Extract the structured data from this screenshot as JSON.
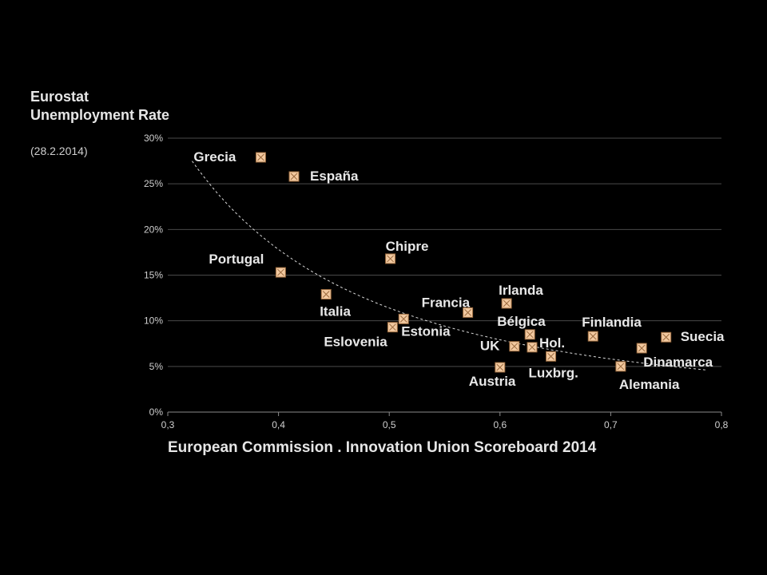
{
  "chart_data": {
    "type": "scatter",
    "title": "",
    "ylabel": "Eurostat Unemployment Rate",
    "ylabel_note": "(28.2.2014)",
    "xlabel": "European Commission . Innovation Union Scoreboard 2014",
    "xlim": [
      0.3,
      0.8
    ],
    "ylim": [
      0,
      30
    ],
    "x_ticks": [
      "0,3",
      "0,4",
      "0,5",
      "0,6",
      "0,7",
      "0,8"
    ],
    "y_ticks": [
      "0%",
      "5%",
      "10%",
      "15%",
      "20%",
      "25%",
      "30%"
    ],
    "grid": "horizontal",
    "trendline": "dashed curve",
    "marker_color": "#f2c9a0",
    "points": [
      {
        "label": "Grecia",
        "x": 0.384,
        "y": 27.9
      },
      {
        "label": "España",
        "x": 0.414,
        "y": 25.8
      },
      {
        "label": "Chipre",
        "x": 0.501,
        "y": 16.8
      },
      {
        "label": "Portugal",
        "x": 0.402,
        "y": 15.3
      },
      {
        "label": "Italia",
        "x": 0.443,
        "y": 12.9
      },
      {
        "label": "Irlanda",
        "x": 0.606,
        "y": 11.9
      },
      {
        "label": "Francia",
        "x": 0.571,
        "y": 10.9
      },
      {
        "label": "Estonia",
        "x": 0.513,
        "y": 10.2
      },
      {
        "label": "Eslovenia",
        "x": 0.503,
        "y": 9.3
      },
      {
        "label": "Bélgica",
        "x": 0.627,
        "y": 8.5
      },
      {
        "label": "Finlandia",
        "x": 0.684,
        "y": 8.3
      },
      {
        "label": "Suecia",
        "x": 0.75,
        "y": 8.2
      },
      {
        "label": "UK",
        "x": 0.613,
        "y": 7.2
      },
      {
        "label": "Hol.",
        "x": 0.629,
        "y": 7.1
      },
      {
        "label": "Dinamarca",
        "x": 0.728,
        "y": 7.0
      },
      {
        "label": "Luxbrg.",
        "x": 0.646,
        "y": 6.1
      },
      {
        "label": "Austria",
        "x": 0.6,
        "y": 4.9
      },
      {
        "label": "Alemania",
        "x": 0.709,
        "y": 5.0
      }
    ]
  }
}
